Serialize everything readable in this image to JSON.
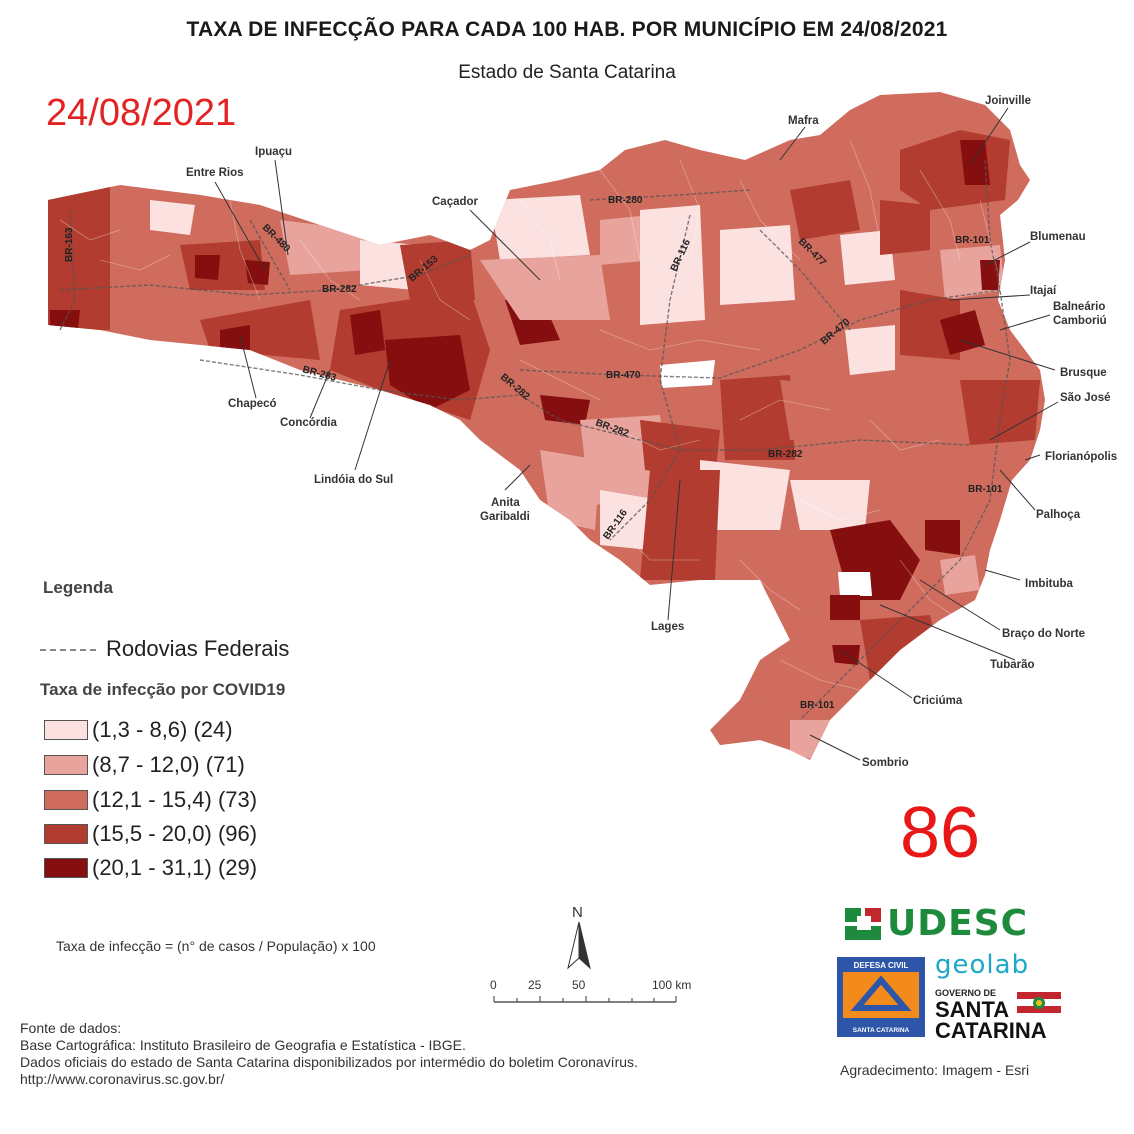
{
  "header": {
    "title": "TAXA DE INFECÇÃO PARA CADA 100 HAB. POR MUNICÍPIO EM 24/08/2021",
    "subtitle": "Estado de Santa Catarina"
  },
  "date_stamp": "24/08/2021",
  "big_number": "86",
  "cities": [
    "Joinville",
    "Mafra",
    "Ipuaçu",
    "Entre Rios",
    "Caçador",
    "Blumenau",
    "Itajaí",
    "Balneário",
    "Camboriú",
    "Brusque",
    "São José",
    "Florianópolis",
    "Chapecó",
    "Concórdia",
    "Lindóia do Sul",
    "Anita",
    "Garibaldi",
    "Palhoça",
    "Imbituba",
    "Lages",
    "Braço do Norte",
    "Tubarão",
    "Criciúma",
    "Sombrio"
  ],
  "roads": [
    "BR-163",
    "BR-480",
    "BR-282",
    "BR-153",
    "BR-280",
    "BR-116",
    "BR-477",
    "BR-101",
    "BR-470",
    "BR-283",
    "BR-282",
    "BR-470",
    "BR-282",
    "BR-282",
    "BR-116",
    "BR-101",
    "BR-101"
  ],
  "legend": {
    "title": "Legenda",
    "roads_label": "Rodovias Federais",
    "classes_title": "Taxa de infecção por COVID19",
    "classes": [
      {
        "label": "(1,3 - 8,6) (24)",
        "color": "#fbe2e1"
      },
      {
        "label": "(8,7 - 12,0) (71)",
        "color": "#e8a39c"
      },
      {
        "label": "(12,1 - 15,4) (73)",
        "color": "#cf6c5e"
      },
      {
        "label": "(15,5 - 20,0) (96)",
        "color": "#b13c2f"
      },
      {
        "label": "(20,1 - 31,1) (29)",
        "color": "#850e0e"
      }
    ]
  },
  "formula": "Taxa de infecção = (n° de casos / População) x 100",
  "north_label": "N",
  "scale": {
    "ticks": [
      "0",
      "25",
      "50",
      "100 km"
    ]
  },
  "sources": [
    "Fonte de dados:",
    "Base Cartográfica: Instituto Brasileiro de Geografia e Estatística - IBGE.",
    "Dados oficiais do estado de Santa Catarina disponibilizados por intermédio do boletim Coronavírus.",
    "http://www.coronavirus.sc.gov.br/"
  ],
  "credit": "Agradecimento: Imagem - Esri",
  "logos": {
    "udesc": "UDESC",
    "defesa_top": "DEFESA CIVIL",
    "defesa_bottom": "SANTA CATARINA",
    "geolab": "geolab",
    "gov_line1": "GOVERNO DE",
    "gov_line2": "SANTA",
    "gov_line3": "CATARINA"
  }
}
